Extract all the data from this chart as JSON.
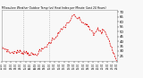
{
  "title": "Milwaukee Weather Outdoor Temp (vs) Heat Index per Minute (Last 24 Hours)",
  "line_color": "#dd0000",
  "background_color": "#f8f8f8",
  "vline_color": "#aaaaaa",
  "ylim": [
    20,
    72
  ],
  "yticks": [
    25,
    30,
    35,
    40,
    45,
    50,
    55,
    60,
    65,
    70
  ],
  "vlines_x": [
    0.185,
    0.415
  ],
  "num_points": 144,
  "noise_seed": 7
}
